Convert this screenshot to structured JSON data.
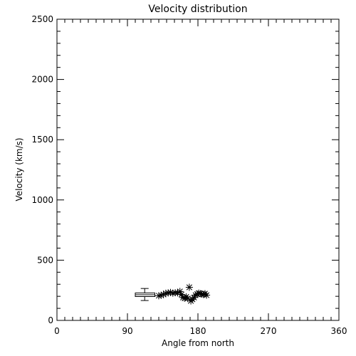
{
  "chart_data": {
    "type": "scatter",
    "title": "Velocity distribution",
    "xlabel": "Angle from north",
    "ylabel": "Velocity (km/s)",
    "xlim": [
      0,
      360
    ],
    "ylim": [
      0,
      2500
    ],
    "xticks": [
      0,
      90,
      180,
      270,
      360
    ],
    "yticks": [
      0,
      500,
      1000,
      1500,
      2000,
      2500
    ],
    "grid": false,
    "marker": "asterisk",
    "series": [
      {
        "points": [
          [
            130,
            205
          ],
          [
            133,
            208
          ],
          [
            136,
            215
          ],
          [
            139,
            225
          ],
          [
            142,
            228
          ],
          [
            145,
            232
          ],
          [
            148,
            226
          ],
          [
            151,
            230
          ],
          [
            154,
            228
          ],
          [
            157,
            240
          ],
          [
            159,
            215
          ],
          [
            161,
            190
          ],
          [
            163,
            185
          ],
          [
            165,
            195
          ],
          [
            167,
            182
          ],
          [
            169,
            275
          ],
          [
            171,
            162
          ],
          [
            173,
            175
          ],
          [
            175,
            190
          ],
          [
            177,
            210
          ],
          [
            179,
            218
          ],
          [
            181,
            226
          ],
          [
            183,
            222
          ],
          [
            185,
            218
          ],
          [
            187,
            216
          ],
          [
            189,
            222
          ],
          [
            191,
            210
          ]
        ]
      }
    ],
    "boxplot": {
      "min": 165,
      "q1": 198,
      "median": 213,
      "q3": 228,
      "max": 265,
      "x_left": 100,
      "x_right": 125,
      "whisker_x_left": 107,
      "whisker_x_right": 117
    }
  }
}
